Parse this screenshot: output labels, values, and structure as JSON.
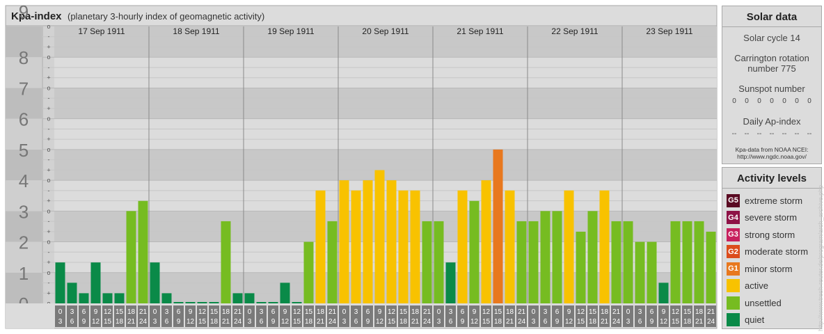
{
  "title": "Kpa-index",
  "subtitle": "(planetary 3-hourly index of geomagnetic activity)",
  "chart_data": {
    "type": "bar",
    "title": "Kpa-index",
    "subtitle": "(planetary 3-hourly index of geomagnetic activity)",
    "ylim": [
      0,
      9
    ],
    "y_ticks": [
      "0",
      "1",
      "2",
      "3",
      "4",
      "5",
      "6",
      "7",
      "8",
      "9"
    ],
    "minor_marks": [
      "o",
      "+",
      "-",
      "o",
      "+",
      "-",
      "o",
      "+",
      "-",
      "o",
      "+",
      "-",
      "o",
      "+",
      "-",
      "o",
      "+",
      "-",
      "o",
      "+",
      "-",
      "o",
      "+",
      "-",
      "o",
      "+",
      "-",
      "o"
    ],
    "interval_starts": [
      "0",
      "3",
      "6",
      "9",
      "12",
      "15",
      "18",
      "21"
    ],
    "interval_ends": [
      "3",
      "6",
      "9",
      "12",
      "15",
      "18",
      "21",
      "24"
    ],
    "days": [
      "17 Sep 1911",
      "18 Sep 1911",
      "19 Sep 1911",
      "20 Sep 1911",
      "21 Sep 1911",
      "22 Sep 1911",
      "23 Sep 1911"
    ],
    "series": [
      {
        "values": [
          1.33,
          0.67,
          0.33,
          1.33,
          0.33,
          0.33,
          3.0,
          3.33,
          1.33,
          0.33,
          0.0,
          0.0,
          0.0,
          0.0,
          2.67,
          0.33,
          0.33,
          0.0,
          0.0,
          0.67,
          0.0,
          2.0,
          3.67,
          2.67,
          4.0,
          3.67,
          4.0,
          4.33,
          4.0,
          3.67,
          3.67,
          2.67,
          2.67,
          1.33,
          3.67,
          3.33,
          4.0,
          5.0,
          3.67,
          2.67,
          2.67,
          3.0,
          3.0,
          3.67,
          2.33,
          3.0,
          3.67,
          2.67,
          2.67,
          2.0,
          2.0,
          0.67,
          2.67,
          2.67,
          2.67,
          2.33
        ]
      }
    ],
    "color_levels": [
      {
        "level": "quiet",
        "color": "#0a8a48",
        "below": 2
      },
      {
        "level": "unsettled",
        "color": "#76bc21",
        "below": 3.67
      },
      {
        "level": "active",
        "color": "#f8c200",
        "below": 5
      },
      {
        "level": "minor storm",
        "color": "#e8781e",
        "below": 6
      }
    ],
    "grid": true
  },
  "solar": {
    "title": "Solar data",
    "cycle": "Solar cycle 14",
    "carrington": [
      "Carrington rotation",
      "number 775"
    ],
    "sunspot_label": "Sunspot number",
    "sunspot_values": [
      "0",
      "0",
      "0",
      "0",
      "0",
      "0",
      "0"
    ],
    "ap_label": "Daily Ap-index",
    "ap_values": [
      "--",
      "--",
      "--",
      "--",
      "--",
      "--",
      "--"
    ],
    "source": [
      "Kpa-data from NOAA NCEI:",
      "http://www.ngdc.noaa.gov/"
    ]
  },
  "levels": {
    "title": "Activity levels",
    "items": [
      {
        "badge": "G5",
        "label": "extreme storm",
        "color": "#5a0a22"
      },
      {
        "badge": "G4",
        "label": "severe storm",
        "color": "#8e1246"
      },
      {
        "badge": "G3",
        "label": "strong storm",
        "color": "#c8205e"
      },
      {
        "badge": "G2",
        "label": "moderate storm",
        "color": "#dc4c1c"
      },
      {
        "badge": "G1",
        "label": "minor storm",
        "color": "#e8781e"
      },
      {
        "badge": "",
        "label": "active",
        "color": "#f8c200"
      },
      {
        "badge": "",
        "label": "unsettled",
        "color": "#76bc21"
      },
      {
        "badge": "",
        "label": "quiet",
        "color": "#0a8a48"
      }
    ]
  },
  "watermark": "http://www.tresh-reuter.de/program/arch_archive.php"
}
